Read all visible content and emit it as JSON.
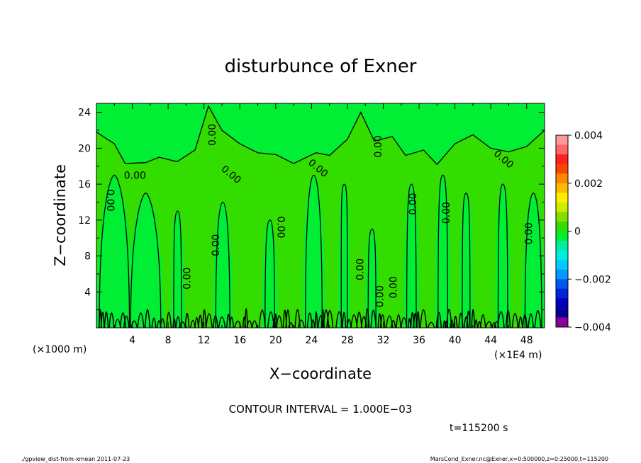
{
  "chart_data": {
    "type": "heatmap",
    "title": "disturbunce of Exner",
    "xlabel": "X−coordinate",
    "ylabel": "Z−coordinate",
    "x_unit": "(×1E4 m)",
    "y_unit": "(×1000 m)",
    "xlim": [
      0,
      50
    ],
    "ylim": [
      0,
      25
    ],
    "x_ticks": [
      4,
      8,
      12,
      16,
      20,
      24,
      28,
      32,
      36,
      40,
      44,
      48
    ],
    "y_ticks": [
      4,
      8,
      12,
      16,
      20,
      24
    ],
    "contour_interval_text": "CONTOUR INTERVAL = 1.000E−03",
    "time_text": "t=115200 s",
    "contour_labels": [
      "0.00"
    ],
    "colorbar": {
      "range": [
        -0.004,
        0.004
      ],
      "tick_labels": [
        "0.004",
        "0.002",
        "0",
        "−0.002",
        "−0.004"
      ],
      "tick_values": [
        0.004,
        0.002,
        0,
        -0.002,
        -0.004
      ],
      "colors": [
        "#ff9999",
        "#ff6666",
        "#ff2020",
        "#ff4400",
        "#ff8800",
        "#ffbb00",
        "#ffee00",
        "#ccee00",
        "#88dd00",
        "#33dd00",
        "#00ee33",
        "#00ee99",
        "#00eedd",
        "#00ccff",
        "#0099ff",
        "#0055ee",
        "#0022dd",
        "#0000bb",
        "#000099",
        "#880099"
      ]
    },
    "field_color": "#33dd00",
    "field_secondary_color": "#00ee33",
    "contour_color": "#000000"
  },
  "footer": {
    "left": "./gpview_dist-from-xmean  2011-07-23",
    "right": "MarsCond_Exner.nc@Exner,x=0:500000,z=0:25000,t=115200"
  }
}
